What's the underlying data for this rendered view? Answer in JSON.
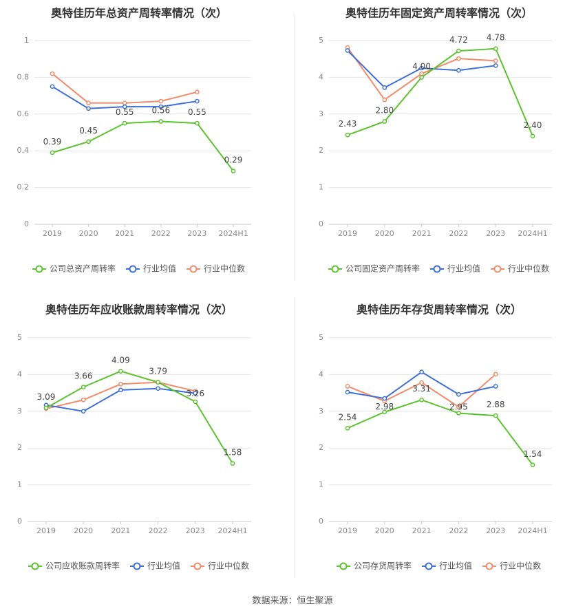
{
  "colors": {
    "company": "#5cc22e",
    "avg": "#3d6fd6",
    "median": "#f28b6a",
    "grid": "#e4e6ee",
    "axis_text": "#888888",
    "title_text": "#333333",
    "label_text": "#444444"
  },
  "legend_labels": {
    "avg": "行业均值",
    "median": "行业中位数"
  },
  "source_text": "数据来源：恒生聚源",
  "chart_data": [
    {
      "type": "line",
      "title": "奥特佳历年总资产周转率情况（次）",
      "x": [
        "2019",
        "2020",
        "2021",
        "2022",
        "2023",
        "2024H1"
      ],
      "ylim": [
        0,
        1
      ],
      "yticks": [
        "0",
        "0.2",
        "0.4",
        "0.6",
        "0.8",
        "1"
      ],
      "grid": true,
      "legend": "bottom",
      "series": [
        {
          "name": "公司总资产周转率",
          "key": "company",
          "values": [
            0.39,
            0.45,
            0.55,
            0.56,
            0.55,
            0.29
          ],
          "labels": [
            "0.39",
            "0.45",
            "0.55",
            "0.56",
            "0.55",
            "0.29"
          ]
        },
        {
          "name": "行业均值",
          "key": "avg",
          "values": [
            0.75,
            0.63,
            0.64,
            0.64,
            0.67,
            null
          ]
        },
        {
          "name": "行业中位数",
          "key": "median",
          "values": [
            0.82,
            0.66,
            0.66,
            0.67,
            0.72,
            null
          ]
        }
      ]
    },
    {
      "type": "line",
      "title": "奥特佳历年固定资产周转率情况（次）",
      "x": [
        "2019",
        "2020",
        "2021",
        "2022",
        "2023",
        "2024H1"
      ],
      "ylim": [
        0,
        5
      ],
      "yticks": [
        "0",
        "1",
        "2",
        "3",
        "4",
        "5"
      ],
      "grid": true,
      "legend": "bottom",
      "series": [
        {
          "name": "公司固定资产周转率",
          "key": "company",
          "values": [
            2.43,
            2.8,
            4.0,
            4.72,
            4.78,
            2.4
          ],
          "labels": [
            "2.43",
            "2.80",
            "4.00",
            "4.72",
            "4.78",
            "2.40"
          ]
        },
        {
          "name": "行业均值",
          "key": "avg",
          "values": [
            4.73,
            3.72,
            4.25,
            4.19,
            4.32,
            null
          ]
        },
        {
          "name": "行业中位数",
          "key": "median",
          "values": [
            4.81,
            3.39,
            4.1,
            4.51,
            4.45,
            null
          ]
        }
      ]
    },
    {
      "type": "line",
      "title": "奥特佳历年应收账款周转率情况（次）",
      "x": [
        "2019",
        "2020",
        "2021",
        "2022",
        "2023",
        "2024H1"
      ],
      "ylim": [
        0,
        5
      ],
      "yticks": [
        "0",
        "1",
        "2",
        "3",
        "4",
        "5"
      ],
      "grid": true,
      "legend": "bottom",
      "series": [
        {
          "name": "公司应收账款周转率",
          "key": "company",
          "values": [
            3.09,
            3.66,
            4.09,
            3.79,
            3.26,
            1.58
          ],
          "labels": [
            "3.09",
            "3.66",
            "4.09",
            "3.79",
            "3.26",
            "1.58"
          ]
        },
        {
          "name": "行业均值",
          "key": "avg",
          "values": [
            3.17,
            3.0,
            3.58,
            3.62,
            3.49,
            null
          ]
        },
        {
          "name": "行业中位数",
          "key": "median",
          "values": [
            3.07,
            3.31,
            3.74,
            3.79,
            3.55,
            null
          ]
        }
      ]
    },
    {
      "type": "line",
      "title": "奥特佳历年存货周转率情况（次）",
      "x": [
        "2019",
        "2020",
        "2021",
        "2022",
        "2023",
        "2024H1"
      ],
      "ylim": [
        0,
        5
      ],
      "yticks": [
        "0",
        "1",
        "2",
        "3",
        "4",
        "5"
      ],
      "grid": true,
      "legend": "bottom",
      "series": [
        {
          "name": "公司存货周转率",
          "key": "company",
          "values": [
            2.54,
            2.98,
            3.31,
            2.95,
            2.88,
            1.54
          ],
          "labels": [
            "2.54",
            "2.98",
            "3.31",
            "2.95",
            "2.88",
            "1.54"
          ]
        },
        {
          "name": "行业均值",
          "key": "avg",
          "values": [
            3.52,
            3.35,
            4.07,
            3.46,
            3.68,
            null
          ]
        },
        {
          "name": "行业中位数",
          "key": "median",
          "values": [
            3.68,
            3.28,
            3.78,
            3.12,
            4.01,
            null
          ]
        }
      ]
    }
  ]
}
